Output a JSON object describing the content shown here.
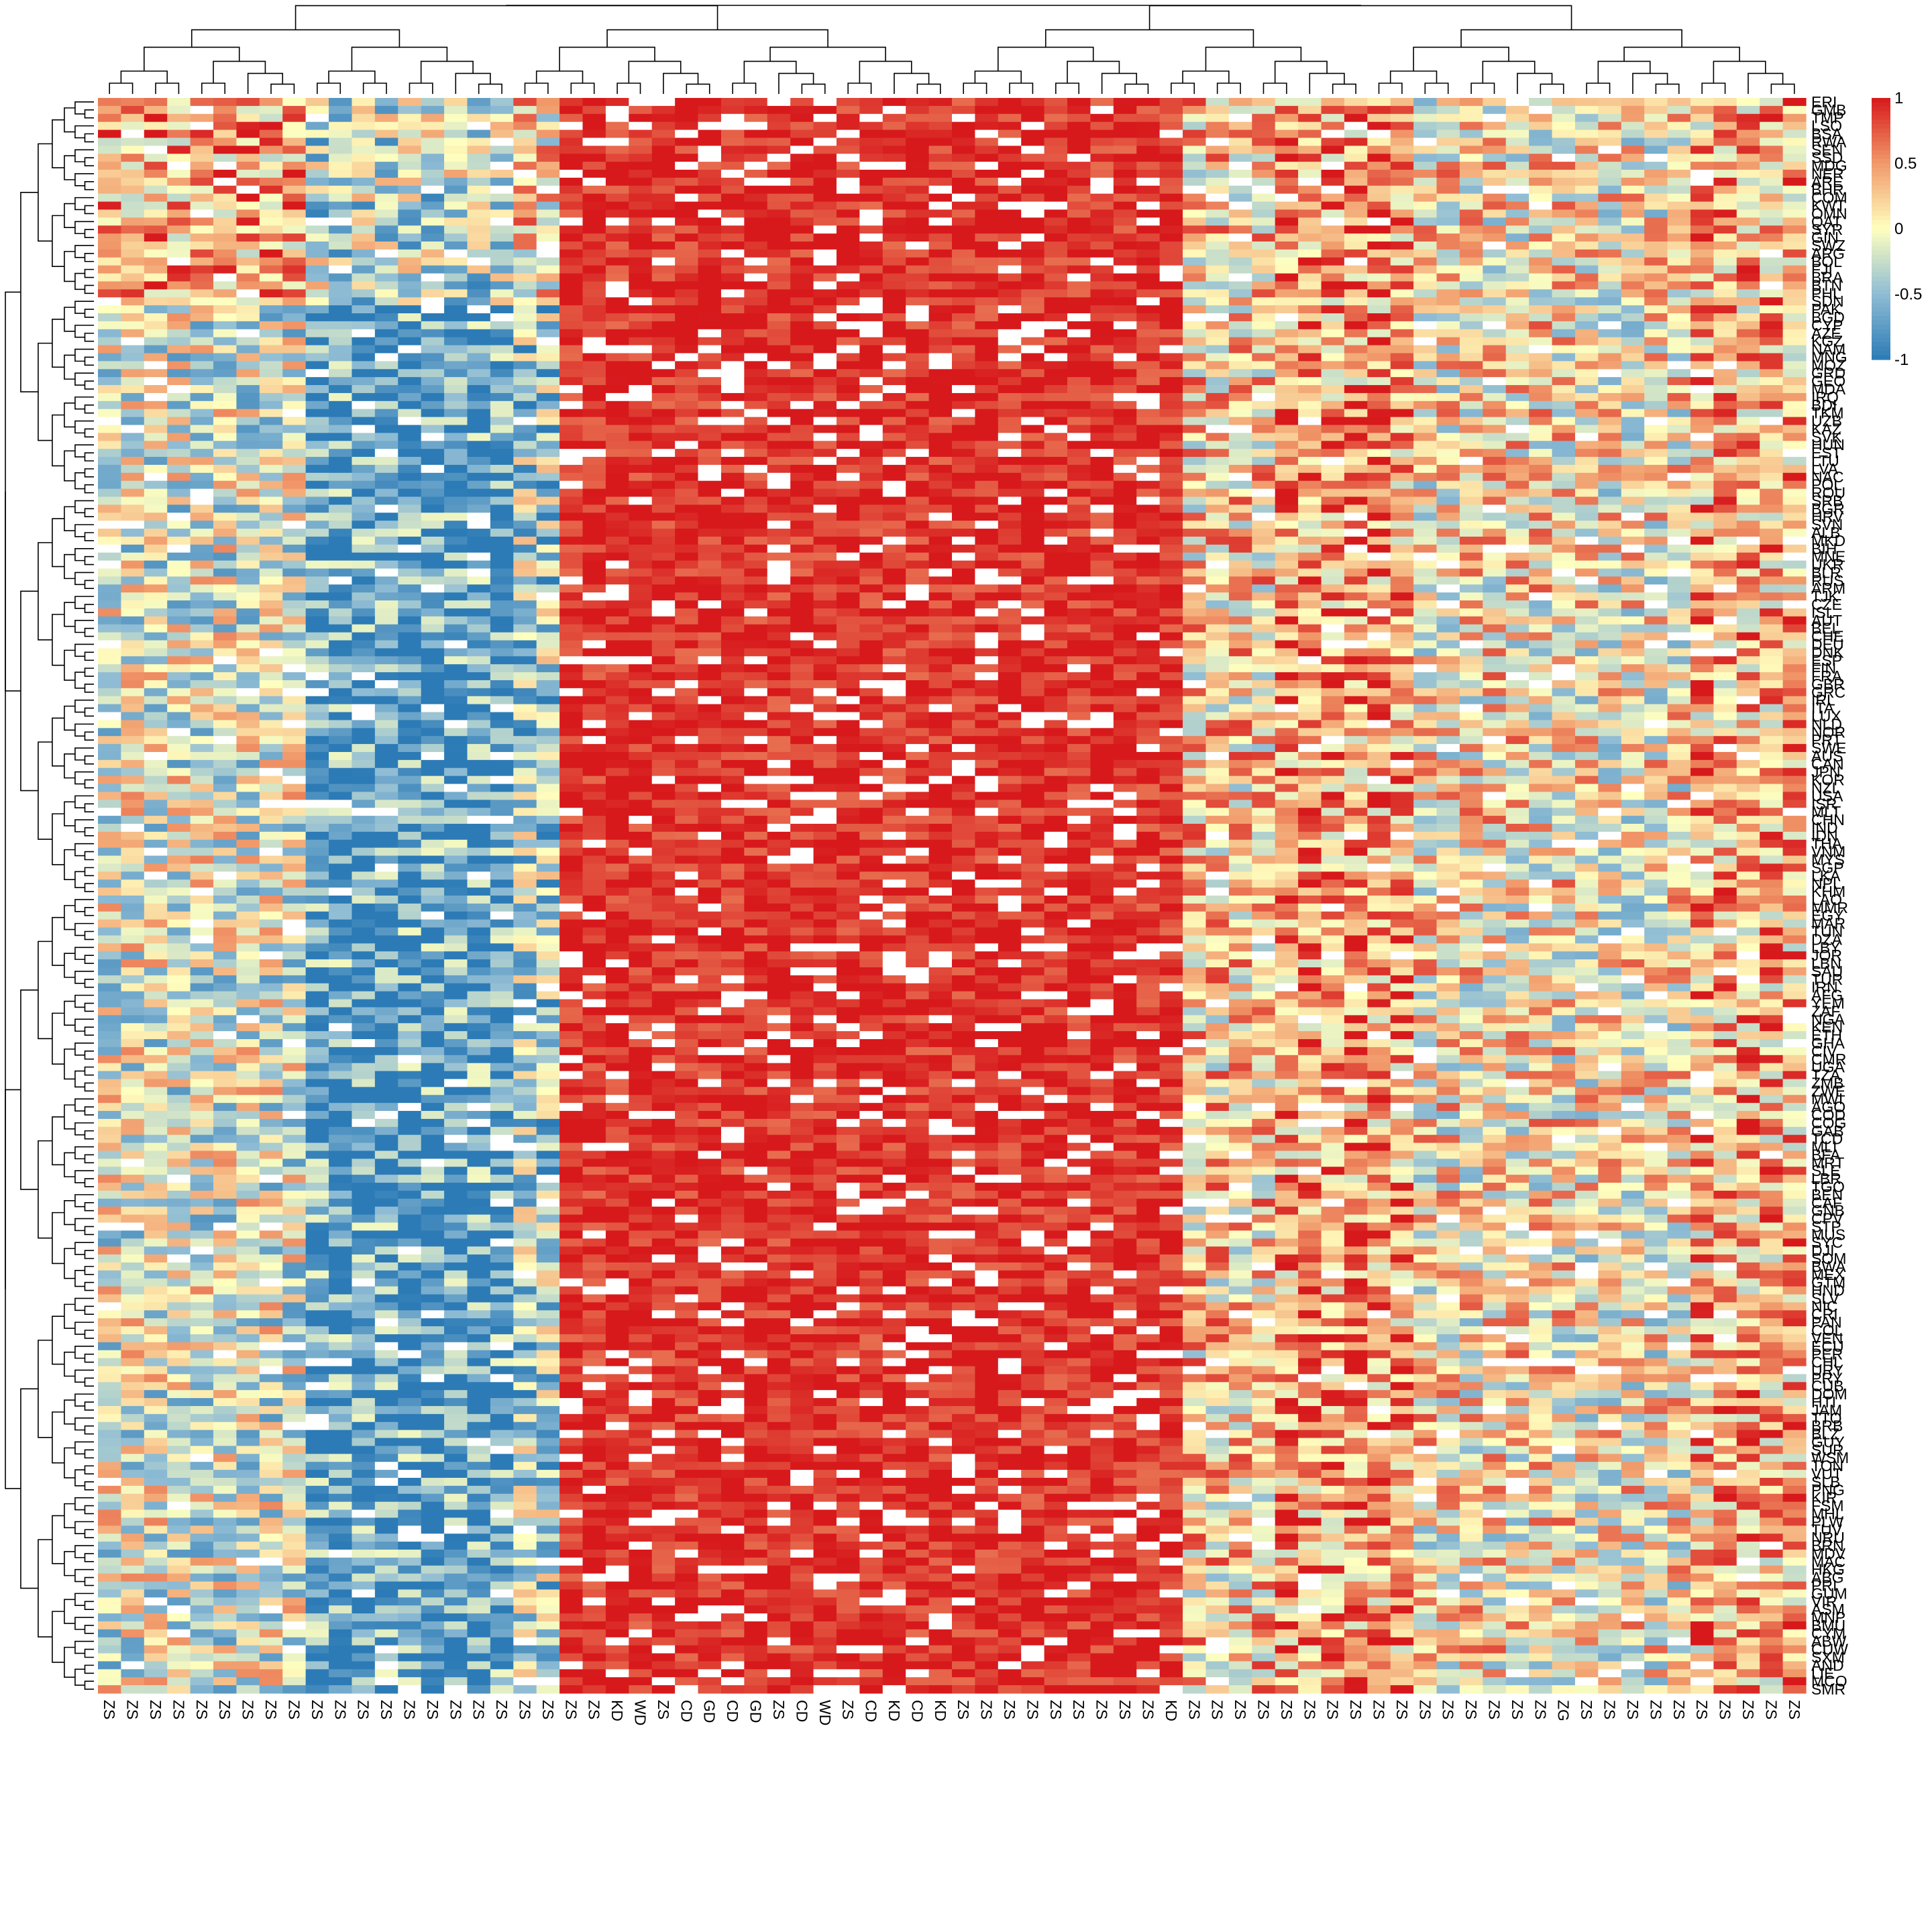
{
  "chart_data": {
    "type": "heatmap",
    "title": "",
    "xlabel": "",
    "ylabel": "",
    "color_scale": {
      "min": -1,
      "max": 1,
      "stops": [
        {
          "value": -1,
          "color": "#2c7bb6"
        },
        {
          "value": -0.5,
          "color": "#8fbcd4"
        },
        {
          "value": 0,
          "color": "#ffffbf"
        },
        {
          "value": 0.5,
          "color": "#f1996a"
        },
        {
          "value": 1,
          "color": "#d7191c"
        }
      ],
      "missing_color": "#ffffff",
      "tick_labels": [
        "1",
        "0.5",
        "0",
        "-0.5",
        "-1"
      ]
    },
    "row_labels": [
      "ERI",
      "GMB",
      "TMP",
      "LSO",
      "BSA",
      "RWA",
      "SEN",
      "SSD",
      "MDG",
      "NER",
      "ARE",
      "BHR",
      "COM",
      "KWT",
      "OMN",
      "QAT",
      "SYR",
      "GIN",
      "SWZ",
      "ARG",
      "BOL",
      "FJI",
      "BRA",
      "BTN",
      "PHL",
      "SDN",
      "PAK",
      "BGD",
      "CYP",
      "AZE",
      "KGZ",
      "NAM",
      "MNG",
      "MOZ",
      "GRD",
      "GEO",
      "MDA",
      "IRQ",
      "BDI",
      "TKM",
      "UZB",
      "KAZ",
      "SVK",
      "HUN",
      "EST",
      "LTU",
      "LVA",
      "NAC",
      "POL",
      "ROU",
      "SRB",
      "BGR",
      "HRV",
      "SVN",
      "ALB",
      "MKD",
      "BIH",
      "MNE",
      "UKR",
      "BLR",
      "RUS",
      "ARM",
      "TJK",
      "CZE",
      "ISL",
      "AUT",
      "BEL",
      "CHE",
      "DEU",
      "DNK",
      "ESP",
      "FIN",
      "FRA",
      "GBR",
      "GRC",
      "IRL",
      "ITA",
      "LUX",
      "NLD",
      "NOR",
      "PRT",
      "SWE",
      "AUS",
      "CAN",
      "JPN",
      "KOR",
      "NZL",
      "USA",
      "ISR",
      "MLT",
      "CHN",
      "IND",
      "IDN",
      "THA",
      "VNM",
      "MYS",
      "SGP",
      "LKA",
      "NPL",
      "KHM",
      "LAO",
      "MMR",
      "EGY",
      "MAR",
      "TUN",
      "DZA",
      "LBY",
      "JOR",
      "LBN",
      "SAU",
      "TUR",
      "IRN",
      "AFG",
      "YEM",
      "ZAF",
      "NGA",
      "KEN",
      "ETH",
      "GHA",
      "CIV",
      "CMR",
      "UGA",
      "TZA",
      "ZMB",
      "ZWE",
      "MWI",
      "AGO",
      "COD",
      "COG",
      "GAB",
      "TCD",
      "MLI",
      "BFA",
      "MRT",
      "SLE",
      "LBR",
      "TGO",
      "BEN",
      "CAF",
      "GNB",
      "CPV",
      "STP",
      "MUS",
      "SYC",
      "DJI",
      "SOM",
      "BWA",
      "MEX",
      "GTM",
      "HND",
      "SLV",
      "NIC",
      "CRI",
      "PAN",
      "COL",
      "VEN",
      "ECU",
      "PER",
      "CHL",
      "URY",
      "PRY",
      "CUB",
      "DOM",
      "HTI",
      "JAM",
      "TTO",
      "BRB",
      "BLZ",
      "GUY",
      "SUR",
      "WSM",
      "TON",
      "VUT",
      "SLB",
      "PNG",
      "KIR",
      "FSM",
      "MHL",
      "PLW",
      "TUV",
      "NRU",
      "BRN",
      "MDV",
      "MAC",
      "HKG",
      "ABG",
      "PRI",
      "GUM",
      "VIR",
      "ASM",
      "MNP",
      "BMU",
      "CYM",
      "ABW",
      "CUW",
      "SXM",
      "AND",
      "LIE",
      "MCO",
      "SMR"
    ],
    "column_labels": [
      "ZS",
      "ZS",
      "ZS",
      "ZS",
      "ZS",
      "ZS",
      "ZS",
      "ZS",
      "ZS",
      "ZS",
      "ZS",
      "ZS",
      "ZS",
      "ZS",
      "ZS",
      "ZS",
      "ZS",
      "ZS",
      "ZS",
      "ZS",
      "ZS",
      "ZS",
      "KD",
      "WD",
      "ZS",
      "CD",
      "GD",
      "CD",
      "GD",
      "ZS",
      "CD",
      "WD",
      "ZS",
      "CD",
      "KD",
      "CD",
      "KD",
      "ZS",
      "ZS",
      "ZS",
      "ZS",
      "ZS",
      "ZS",
      "ZS",
      "ZS",
      "ZS",
      "KD",
      "ZS",
      "ZS",
      "ZS",
      "ZS",
      "ZS",
      "ZS",
      "ZS",
      "ZS",
      "ZS",
      "ZS",
      "ZS",
      "ZS",
      "ZS",
      "ZS",
      "ZS",
      "ZS",
      "ZG",
      "ZS",
      "ZS",
      "ZS",
      "ZS",
      "ZS",
      "ZS",
      "ZS",
      "ZS",
      "ZS",
      "ZS"
    ]
  }
}
